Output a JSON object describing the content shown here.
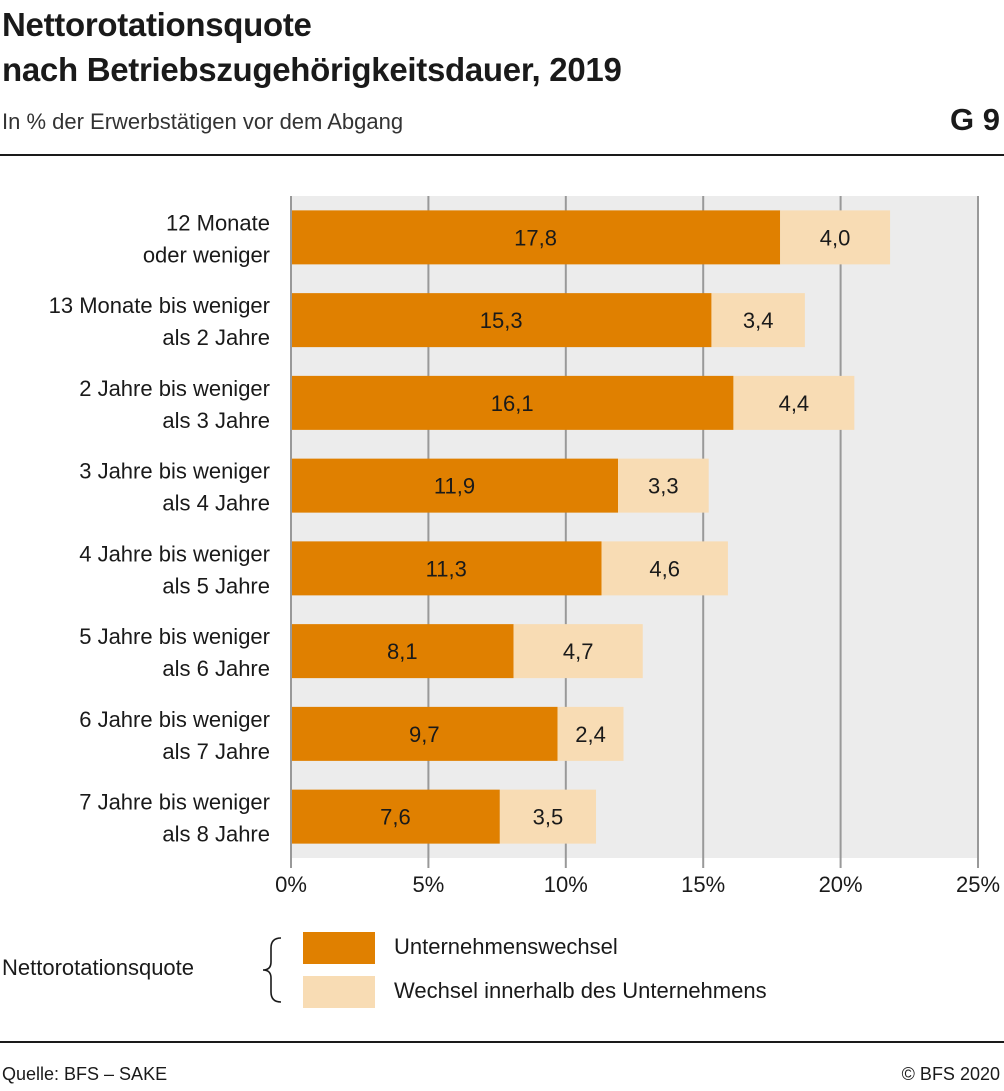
{
  "header": {
    "title_line1": "Nettorotationsquote",
    "title_line2": "nach Betriebszugehörigkeitsdauer, 2019",
    "subtitle": "In % der Erwerbstätigen vor dem Abgang",
    "chart_id": "G 9"
  },
  "legend": {
    "title": "Nettorotationsquote",
    "items": [
      {
        "label": "Unternehmenswechsel",
        "color": "#e08000"
      },
      {
        "label": "Wechsel innerhalb des Unternehmens",
        "color": "#f8dcb4"
      }
    ]
  },
  "footer": {
    "source": "Quelle: BFS – SAKE",
    "copyright": "© BFS 2020"
  },
  "colors": {
    "plot_background": "#ececec",
    "gridline": "#999999"
  },
  "chart_data": {
    "type": "bar",
    "orientation": "horizontal",
    "stacked": true,
    "categories": [
      [
        "12 Monate",
        "oder weniger"
      ],
      [
        "13 Monate bis weniger",
        "als 2 Jahre"
      ],
      [
        "2 Jahre bis weniger",
        "als 3 Jahre"
      ],
      [
        "3 Jahre bis weniger",
        "als 4 Jahre"
      ],
      [
        "4 Jahre bis weniger",
        "als 5 Jahre"
      ],
      [
        "5 Jahre bis weniger",
        "als 6 Jahre"
      ],
      [
        "6 Jahre bis weniger",
        "als 7 Jahre"
      ],
      [
        "7 Jahre bis weniger",
        "als 8 Jahre"
      ]
    ],
    "series": [
      {
        "name": "Unternehmenswechsel",
        "color": "#e08000",
        "values": [
          17.8,
          15.3,
          16.1,
          11.9,
          11.3,
          8.1,
          9.7,
          7.6
        ],
        "labels": [
          "17,8",
          "15,3",
          "16,1",
          "11,9",
          "11,3",
          "8,1",
          "9,7",
          "7,6"
        ]
      },
      {
        "name": "Wechsel innerhalb des Unternehmens",
        "color": "#f8dcb4",
        "values": [
          4.0,
          3.4,
          4.4,
          3.3,
          4.6,
          4.7,
          2.4,
          3.5
        ],
        "labels": [
          "4,0",
          "3,4",
          "4,4",
          "3,3",
          "4,6",
          "4,7",
          "2,4",
          "3,5"
        ]
      }
    ],
    "xlim": [
      0,
      25
    ],
    "xticks": [
      0,
      5,
      10,
      15,
      20,
      25
    ],
    "xtick_labels": [
      "0%",
      "5%",
      "10%",
      "15%",
      "20%",
      "25%"
    ],
    "grid": true
  }
}
